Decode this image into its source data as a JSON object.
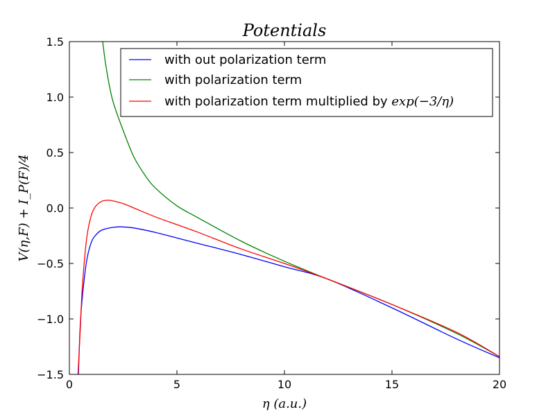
{
  "chart_data": {
    "type": "line",
    "title": "Potentials",
    "xlabel": "η (a.u.)",
    "ylabel": "V(η,F) + I_P(F)/4",
    "xlim": [
      0,
      20
    ],
    "ylim": [
      -1.5,
      1.5
    ],
    "xticks": [
      0,
      5,
      10,
      15,
      20
    ],
    "xtick_labels": [
      "0",
      "5",
      "10",
      "15",
      "20"
    ],
    "yticks": [
      -1.5,
      -1.0,
      -0.5,
      0.0,
      0.5,
      1.0,
      1.5
    ],
    "ytick_labels": [
      "−1.5",
      "−1.0",
      "−0.5",
      "0.0",
      "0.5",
      "1.0",
      "1.5"
    ],
    "grid": false,
    "legend_position": "top-right",
    "series": [
      {
        "name": "with out polarization term",
        "color": "#0000ff",
        "x": [
          0.42,
          0.5,
          0.6,
          0.8,
          1.0,
          1.2,
          1.5,
          2.0,
          2.4,
          3.0,
          4.0,
          5.0,
          6.0,
          8.0,
          10.0,
          12.0,
          15.0,
          18.0,
          20.0
        ],
        "y": [
          -1.5,
          -1.08,
          -0.81,
          -0.48,
          -0.32,
          -0.25,
          -0.2,
          -0.175,
          -0.17,
          -0.18,
          -0.22,
          -0.27,
          -0.32,
          -0.42,
          -0.53,
          -0.64,
          -0.9,
          -1.18,
          -1.35
        ]
      },
      {
        "name": "with polarization term",
        "color": "#008000",
        "x": [
          1.55,
          1.7,
          2.0,
          2.5,
          3.0,
          3.5,
          4.0,
          5.0,
          6.0,
          8.0,
          10.0,
          12.0,
          15.0,
          18.0,
          20.0
        ],
        "y": [
          1.5,
          1.28,
          0.98,
          0.7,
          0.46,
          0.3,
          0.18,
          0.02,
          -0.09,
          -0.3,
          -0.48,
          -0.64,
          -0.87,
          -1.13,
          -1.34
        ]
      },
      {
        "name": "with polarization term multiplied by exp(−3/η)",
        "color": "#ff0000",
        "x": [
          0.4,
          0.5,
          0.6,
          0.8,
          1.0,
          1.2,
          1.5,
          1.8,
          2.0,
          2.5,
          3.0,
          4.0,
          5.0,
          6.0,
          8.0,
          10.0,
          12.0,
          15.0,
          18.0,
          20.0
        ],
        "y": [
          -1.5,
          -1.12,
          -0.72,
          -0.28,
          -0.08,
          0.01,
          0.06,
          0.07,
          0.065,
          0.04,
          0.0,
          -0.08,
          -0.15,
          -0.22,
          -0.37,
          -0.5,
          -0.64,
          -0.87,
          -1.12,
          -1.34
        ]
      }
    ]
  },
  "legend": {
    "items": [
      {
        "label": "with out polarization term",
        "math": ""
      },
      {
        "label": "with polarization term",
        "math": ""
      },
      {
        "label": "with polarization term multiplied by ",
        "math": "exp(−3/η)"
      }
    ]
  }
}
